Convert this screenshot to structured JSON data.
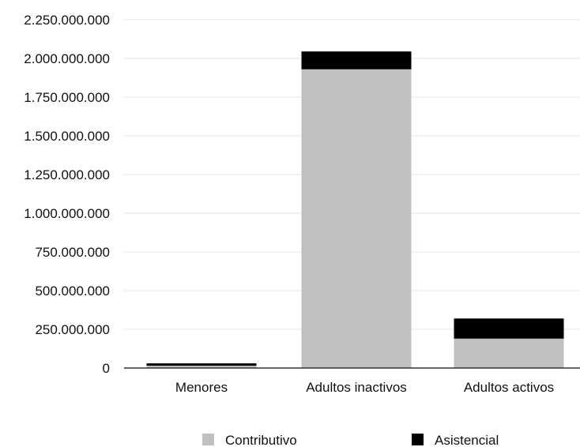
{
  "chart_data": {
    "type": "bar",
    "stacked": true,
    "categories": [
      "Menores",
      "Adultos inactivos",
      "Adultos activos"
    ],
    "series": [
      {
        "name": "Contributivo",
        "color": "#c0c0c0",
        "values": [
          15000000,
          1930000000,
          190000000
        ]
      },
      {
        "name": "Asistencial",
        "color": "#000000",
        "values": [
          15000000,
          115000000,
          130000000
        ]
      }
    ],
    "yticks": [
      "0",
      "250.000.000",
      "500.000.000",
      "750.000.000",
      "1.000.000.000",
      "1.250.000.000",
      "1.500.000.000",
      "1.750.000.000",
      "2.000.000.000",
      "2.250.000.000"
    ],
    "ylim": [
      0,
      2250000000
    ],
    "grid": true,
    "legend_position": "bottom",
    "title": "",
    "xlabel": "",
    "ylabel": ""
  }
}
